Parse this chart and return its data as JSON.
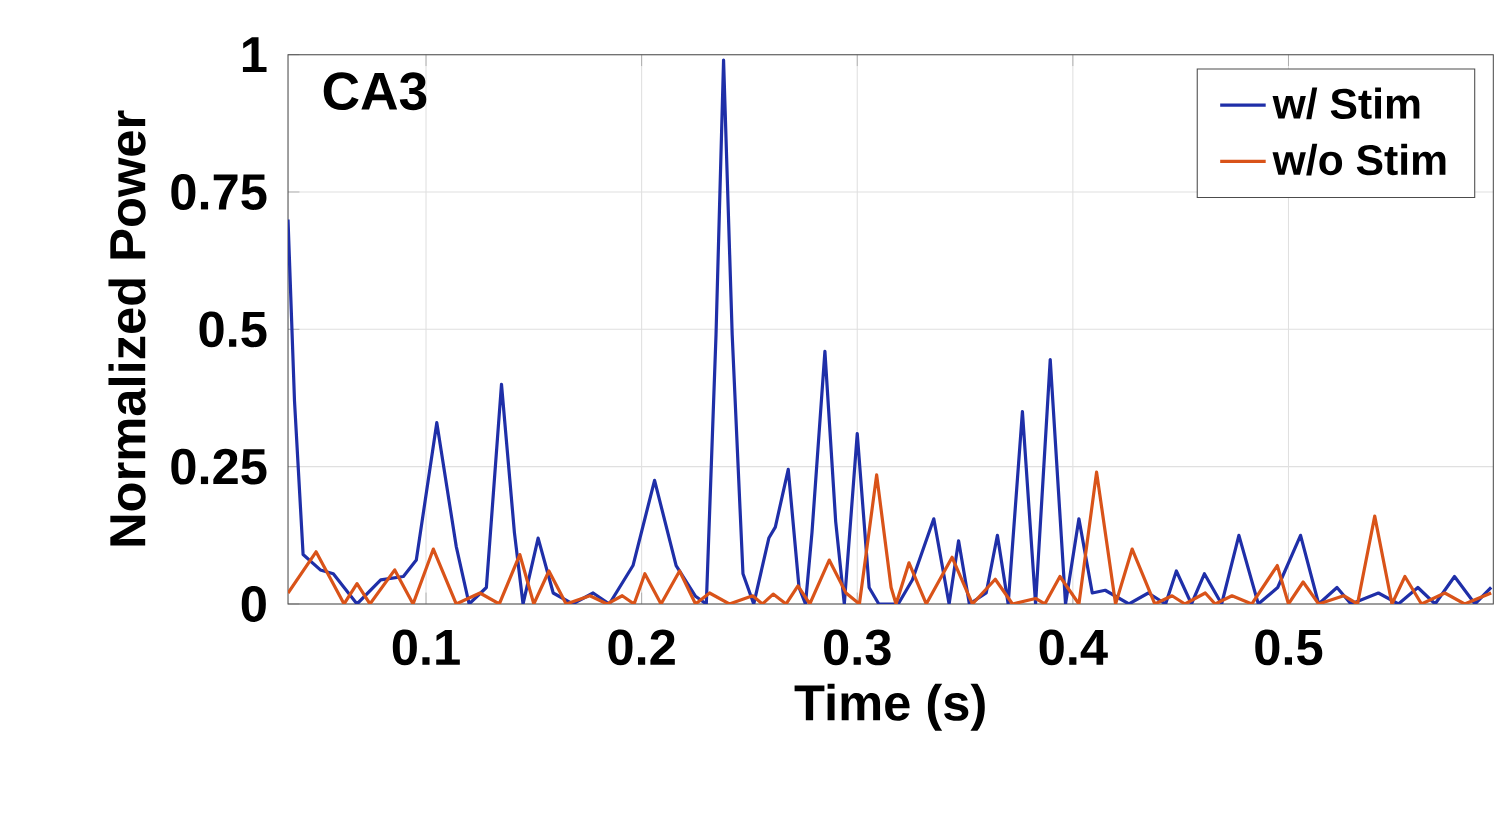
{
  "chart_data": {
    "type": "line",
    "xlabel": "Time (s)",
    "ylabel": "Normalized Power",
    "annotations": [
      "CA3"
    ],
    "xlim": [
      0.036,
      0.595
    ],
    "ylim": [
      0,
      1
    ],
    "xticks": [
      0.1,
      0.2,
      0.3,
      0.4,
      0.5
    ],
    "yticks": [
      0,
      0.25,
      0.5,
      0.75,
      1
    ],
    "grid": true,
    "legend": "top right",
    "series": [
      {
        "name": "w/ Stim",
        "color": "#1f2fa8",
        "x": [
          0.036,
          0.039,
          0.043,
          0.051,
          0.057,
          0.068,
          0.079,
          0.0895,
          0.0955,
          0.105,
          0.114,
          0.12,
          0.128,
          0.135,
          0.141,
          0.145,
          0.152,
          0.159,
          0.168,
          0.1775,
          0.185,
          0.196,
          0.206,
          0.216,
          0.225,
          0.23,
          0.2345,
          0.238,
          0.242,
          0.247,
          0.252,
          0.259,
          0.262,
          0.268,
          0.273,
          0.276,
          0.279,
          0.285,
          0.29,
          0.294,
          0.3,
          0.3055,
          0.31,
          0.319,
          0.3256,
          0.3355,
          0.3426,
          0.347,
          0.352,
          0.3598,
          0.365,
          0.37,
          0.3766,
          0.3827,
          0.3895,
          0.3966,
          0.4028,
          0.409,
          0.415,
          0.426,
          0.435,
          0.443,
          0.448,
          0.455,
          0.461,
          0.469,
          0.477,
          0.486,
          0.495,
          0.5056,
          0.514,
          0.5225,
          0.529,
          0.5417,
          0.551,
          0.56,
          0.568,
          0.577,
          0.5865,
          0.594
        ],
        "values": [
          0.7,
          0.37,
          0.09,
          0.062,
          0.055,
          0,
          0.044,
          0.05,
          0.08,
          0.33,
          0.105,
          0,
          0.03,
          0.4,
          0.13,
          0,
          0.12,
          0.02,
          0,
          0.02,
          0,
          0.07,
          0.225,
          0.07,
          0.014,
          0,
          0.49,
          0.99,
          0.49,
          0.055,
          0,
          0.12,
          0.14,
          0.245,
          0.03,
          0,
          0.13,
          0.46,
          0.15,
          0,
          0.31,
          0.03,
          0,
          0,
          0.044,
          0.155,
          0,
          0.115,
          0,
          0.02,
          0.125,
          0,
          0.35,
          0,
          0.445,
          0,
          0.155,
          0.02,
          0.025,
          0,
          0.02,
          0,
          0.06,
          0,
          0.055,
          0,
          0.125,
          0,
          0.03,
          0.125,
          0,
          0.03,
          0,
          0.02,
          0,
          0.03,
          0,
          0.05,
          0,
          0.03
        ]
      },
      {
        "name": "w/o Stim",
        "color": "#d95319",
        "x": [
          0.036,
          0.049,
          0.062,
          0.068,
          0.074,
          0.0855,
          0.094,
          0.1034,
          0.114,
          0.125,
          0.134,
          0.1435,
          0.15,
          0.157,
          0.165,
          0.176,
          0.184,
          0.191,
          0.1965,
          0.2015,
          0.209,
          0.2176,
          0.225,
          0.2315,
          0.2407,
          0.2515,
          0.256,
          0.261,
          0.267,
          0.2725,
          0.278,
          0.287,
          0.2948,
          0.301,
          0.309,
          0.3157,
          0.318,
          0.324,
          0.332,
          0.344,
          0.3534,
          0.364,
          0.372,
          0.3827,
          0.387,
          0.394,
          0.4028,
          0.411,
          0.4198,
          0.4275,
          0.438,
          0.446,
          0.452,
          0.4614,
          0.466,
          0.4738,
          0.483,
          0.4948,
          0.5,
          0.5068,
          0.514,
          0.5256,
          0.532,
          0.54,
          0.548,
          0.554,
          0.5617,
          0.5725,
          0.5817,
          0.594
        ],
        "values": [
          0.02,
          0.095,
          0,
          0.037,
          0,
          0.062,
          0,
          0.1,
          0,
          0.02,
          0,
          0.09,
          0,
          0.06,
          0,
          0.015,
          0,
          0.015,
          0,
          0.055,
          0,
          0.06,
          0,
          0.02,
          0,
          0.015,
          0,
          0.018,
          0,
          0.033,
          0,
          0.08,
          0.02,
          0,
          0.235,
          0.03,
          0,
          0.075,
          0,
          0.085,
          0,
          0.045,
          0,
          0.01,
          0,
          0.05,
          0,
          0.24,
          0,
          0.1,
          0,
          0.015,
          0,
          0.02,
          0,
          0.015,
          0,
          0.07,
          0,
          0.04,
          0,
          0.015,
          0,
          0.16,
          0,
          0.05,
          0,
          0.02,
          0,
          0.02
        ]
      }
    ]
  }
}
